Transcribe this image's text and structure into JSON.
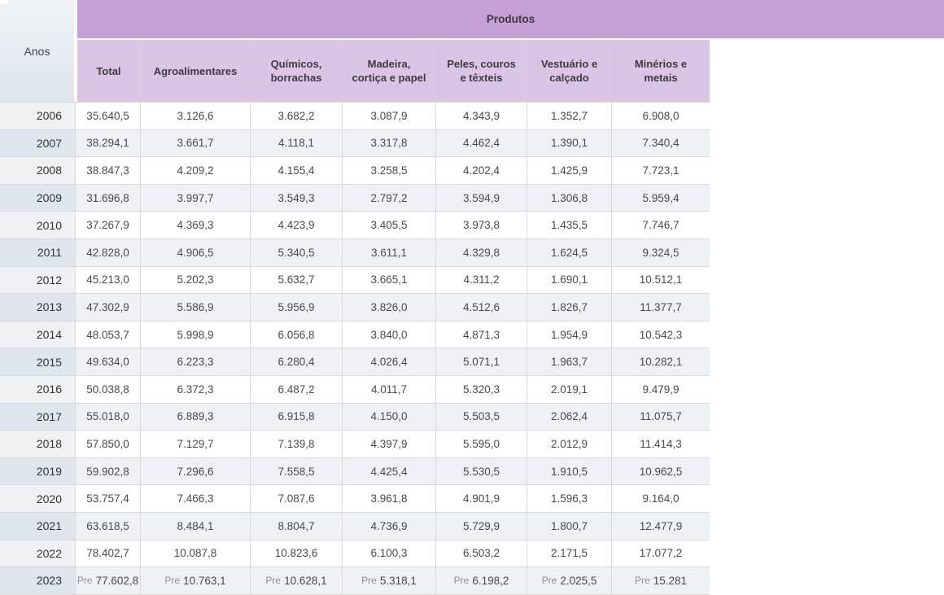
{
  "colors": {
    "products_band": "#c5a0d6",
    "column_header_bg": "#dbc5e7",
    "stripe_row_bg": "#eef1f6",
    "year_column_bg": "#eff1f4",
    "year_column_stripe_bg": "#dfe6ee",
    "grid_border": "#d9d9d9"
  },
  "chart_data": {
    "type": "table",
    "title": "Produtos",
    "row_axis_label": "Anos",
    "preliminary_marker": "Pre",
    "columns": [
      "Total",
      "Agroalimentares",
      "Químicos, borrachas",
      "Madeira, cortiça e papel",
      "Peles, couros e têxteis",
      "Vestuário e calçado",
      "Minérios e metais"
    ],
    "rows": [
      {
        "year": "2006",
        "values": [
          "35.640,5",
          "3.126,6",
          "3.682,2",
          "3.087,9",
          "4.343,9",
          "1.352,7",
          "6.908,0"
        ]
      },
      {
        "year": "2007",
        "values": [
          "38.294,1",
          "3.661,7",
          "4.118,1",
          "3.317,8",
          "4.462,4",
          "1.390,1",
          "7.340,4"
        ]
      },
      {
        "year": "2008",
        "values": [
          "38.847,3",
          "4.209,2",
          "4.155,4",
          "3.258,5",
          "4.202,4",
          "1.425,9",
          "7.723,1"
        ]
      },
      {
        "year": "2009",
        "values": [
          "31.696,8",
          "3.997,7",
          "3.549,3",
          "2.797,2",
          "3.594,9",
          "1.306,8",
          "5.959,4"
        ]
      },
      {
        "year": "2010",
        "values": [
          "37.267,9",
          "4.369,3",
          "4.423,9",
          "3.405,5",
          "3.973,8",
          "1.435,5",
          "7.746,7"
        ]
      },
      {
        "year": "2011",
        "values": [
          "42.828,0",
          "4.906,5",
          "5.340,5",
          "3.611,1",
          "4.329,8",
          "1.624,5",
          "9.324,5"
        ]
      },
      {
        "year": "2012",
        "values": [
          "45.213,0",
          "5.202,3",
          "5.632,7",
          "3.665,1",
          "4.311,2",
          "1.690,1",
          "10.512,1"
        ]
      },
      {
        "year": "2013",
        "values": [
          "47.302,9",
          "5.586,9",
          "5.956,9",
          "3.826,0",
          "4.512,6",
          "1.826,7",
          "11.377,7"
        ]
      },
      {
        "year": "2014",
        "values": [
          "48.053,7",
          "5.998,9",
          "6.056,8",
          "3.840,0",
          "4.871,3",
          "1.954,9",
          "10.542,3"
        ]
      },
      {
        "year": "2015",
        "values": [
          "49.634,0",
          "6.223,3",
          "6.280,4",
          "4.026,4",
          "5.071,1",
          "1.963,7",
          "10.282,1"
        ]
      },
      {
        "year": "2016",
        "values": [
          "50.038,8",
          "6.372,3",
          "6.487,2",
          "4.011,7",
          "5.320,3",
          "2.019,1",
          "9.479,9"
        ]
      },
      {
        "year": "2017",
        "values": [
          "55.018,0",
          "6.889,3",
          "6.915,8",
          "4.150,0",
          "5.503,5",
          "2.062,4",
          "11.075,7"
        ]
      },
      {
        "year": "2018",
        "values": [
          "57.850,0",
          "7.129,7",
          "7.139,8",
          "4.397,9",
          "5.595,0",
          "2.012,9",
          "11.414,3"
        ]
      },
      {
        "year": "2019",
        "values": [
          "59.902,8",
          "7.296,6",
          "7.558,5",
          "4.425,4",
          "5.530,5",
          "1.910,5",
          "10.962,5"
        ]
      },
      {
        "year": "2020",
        "values": [
          "53.757,4",
          "7.466,3",
          "7.087,6",
          "3.961,8",
          "4.901,9",
          "1.596,3",
          "9.164,0"
        ]
      },
      {
        "year": "2021",
        "values": [
          "63.618,5",
          "8.484,1",
          "8.804,7",
          "4.736,9",
          "5.729,9",
          "1.800,7",
          "12.477,9"
        ]
      },
      {
        "year": "2022",
        "values": [
          "78.402,7",
          "10.087,8",
          "10.823,6",
          "6.100,3",
          "6.503,2",
          "2.171,5",
          "17.077,2"
        ]
      },
      {
        "year": "2023",
        "preliminary": true,
        "values": [
          "77.602,8",
          "10.763,1",
          "10.628,1",
          "5.318,1",
          "6.198,2",
          "2.025,5",
          "15.281"
        ]
      }
    ]
  }
}
